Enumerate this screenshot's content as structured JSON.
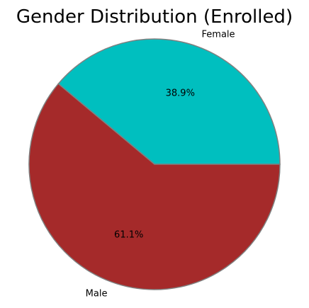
{
  "chart_data": {
    "type": "pie",
    "title": "Gender Distribution (Enrolled)",
    "slices": [
      {
        "label": "Female",
        "value": 38.9,
        "pct_label": "38.9%",
        "color": "#00bfbf"
      },
      {
        "label": "Male",
        "value": 61.1,
        "pct_label": "61.1%",
        "color": "#a52a2a"
      }
    ],
    "start_angle_deg": 0,
    "direction": "counterclockwise",
    "edge_color": "#808080"
  }
}
